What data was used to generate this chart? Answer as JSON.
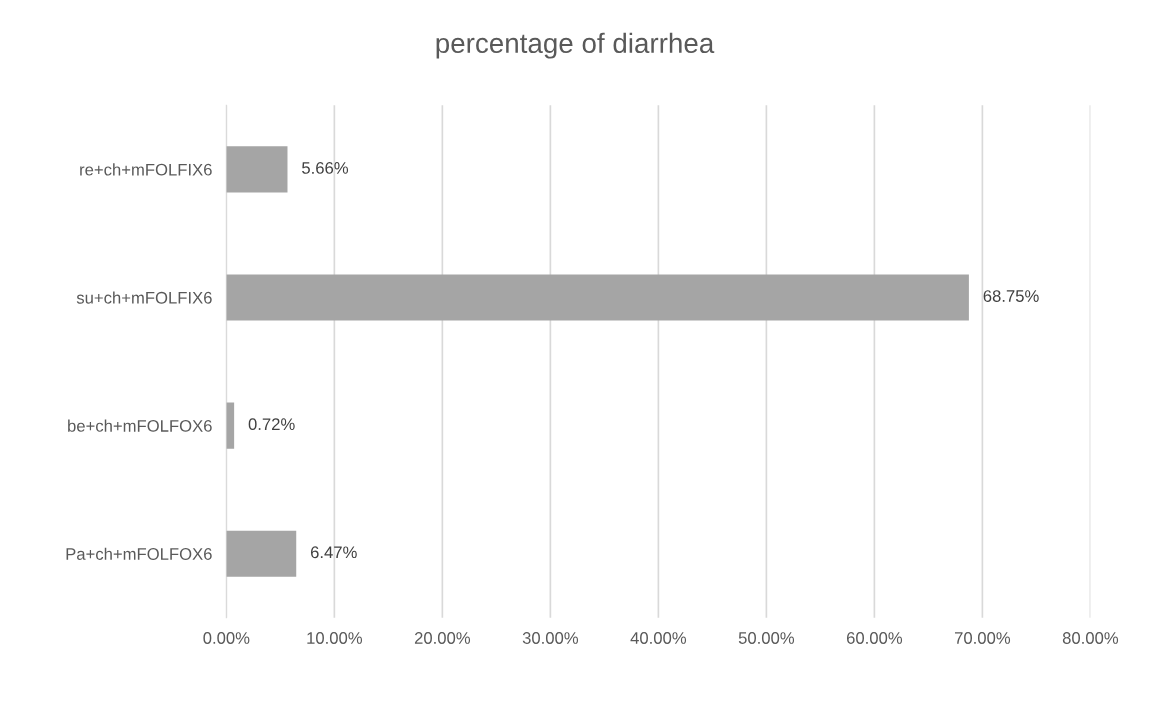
{
  "chart_data": {
    "type": "bar",
    "orientation": "horizontal",
    "title": "percentage of diarrhea",
    "categories": [
      "re+ch+mFOLFIX6",
      "su+ch+mFOLFIX6",
      "be+ch+mFOLFOX6",
      "Pa+ch+mFOLFOX6"
    ],
    "values": [
      5.66,
      68.75,
      0.72,
      6.47
    ],
    "value_labels": [
      "5.66%",
      "68.75%",
      "0.72%",
      "6.47%"
    ],
    "color": "#a5a5a5",
    "xlim": [
      0,
      80
    ],
    "xticks": [
      {
        "value": 0,
        "label": "0.00%"
      },
      {
        "value": 10,
        "label": "10.00%"
      },
      {
        "value": 20,
        "label": "20.00%"
      },
      {
        "value": 30,
        "label": "30.00%"
      },
      {
        "value": 40,
        "label": "40.00%"
      },
      {
        "value": 50,
        "label": "50.00%"
      },
      {
        "value": 60,
        "label": "60.00%"
      },
      {
        "value": 70,
        "label": "70.00%"
      },
      {
        "value": 80,
        "label": "80.00%"
      }
    ],
    "grid": "x",
    "legend": false
  }
}
